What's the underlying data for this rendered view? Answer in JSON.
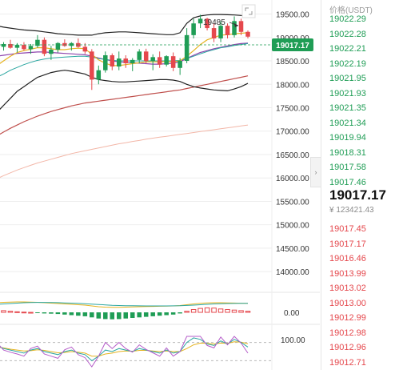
{
  "chart": {
    "high_marker": "19485",
    "price_tag": "19017.17",
    "price_axis": [
      "19500.00",
      "19000.00",
      "18500.00",
      "18000.00",
      "17500.00",
      "17000.00",
      "16500.00",
      "16000.00",
      "15500.00",
      "15000.00",
      "14500.00",
      "14000.00"
    ],
    "macd_axis": "0.00",
    "kdj_axis": "100.00",
    "colors": {
      "up": "#1f9d55",
      "down": "#e5484d",
      "tag_bg": "#1f9d55",
      "grid": "#eeeeee"
    },
    "icons": {
      "expand": "expand-icon",
      "collapse": "chevron-right-icon"
    }
  },
  "orderbook": {
    "header": "价格(USDT)",
    "top_asks": [
      "19022.29",
      "19022.28",
      "19022.21",
      "19022.19",
      "19021.95",
      "19021.93",
      "19021.35",
      "19021.34",
      "19019.94",
      "19018.31",
      "19017.58",
      "19017.46"
    ],
    "last_price": "19017.17",
    "last_sub": "¥ 123421.43",
    "bottom_rows": [
      "19017.45",
      "19017.17",
      "19016.46",
      "19013.99",
      "19013.02",
      "19013.00",
      "19012.99",
      "19012.98",
      "19012.96",
      "19012.71"
    ]
  },
  "chart_data": {
    "type": "candlestick",
    "title": "",
    "price_range": [
      13900,
      19800
    ],
    "candles": [
      {
        "o": 18700,
        "h": 18880,
        "l": 18600,
        "c": 18800
      },
      {
        "o": 18800,
        "h": 18900,
        "l": 18720,
        "c": 18860
      },
      {
        "o": 18860,
        "h": 18950,
        "l": 18760,
        "c": 18780
      },
      {
        "o": 18780,
        "h": 18880,
        "l": 18680,
        "c": 18840
      },
      {
        "o": 18840,
        "h": 18900,
        "l": 18720,
        "c": 18750
      },
      {
        "o": 18750,
        "h": 18860,
        "l": 18650,
        "c": 18820
      },
      {
        "o": 18820,
        "h": 19050,
        "l": 18780,
        "c": 18950
      },
      {
        "o": 18950,
        "h": 19000,
        "l": 18600,
        "c": 18650
      },
      {
        "o": 18650,
        "h": 18820,
        "l": 18520,
        "c": 18740
      },
      {
        "o": 18740,
        "h": 18900,
        "l": 18680,
        "c": 18880
      },
      {
        "o": 18880,
        "h": 18960,
        "l": 18800,
        "c": 18820
      },
      {
        "o": 18820,
        "h": 18900,
        "l": 18720,
        "c": 18880
      },
      {
        "o": 18880,
        "h": 18980,
        "l": 18780,
        "c": 18800
      },
      {
        "o": 18800,
        "h": 18880,
        "l": 18650,
        "c": 18700
      },
      {
        "o": 18700,
        "h": 18750,
        "l": 17880,
        "c": 18100
      },
      {
        "o": 18100,
        "h": 18400,
        "l": 18000,
        "c": 18300
      },
      {
        "o": 18300,
        "h": 18700,
        "l": 18250,
        "c": 18620
      },
      {
        "o": 18620,
        "h": 18660,
        "l": 18300,
        "c": 18380
      },
      {
        "o": 18380,
        "h": 18700,
        "l": 18300,
        "c": 18550
      },
      {
        "o": 18550,
        "h": 18620,
        "l": 18350,
        "c": 18450
      },
      {
        "o": 18450,
        "h": 18560,
        "l": 18280,
        "c": 18520
      },
      {
        "o": 18520,
        "h": 18750,
        "l": 18450,
        "c": 18700
      },
      {
        "o": 18700,
        "h": 18760,
        "l": 18450,
        "c": 18500
      },
      {
        "o": 18500,
        "h": 18640,
        "l": 18300,
        "c": 18580
      },
      {
        "o": 18580,
        "h": 18700,
        "l": 18350,
        "c": 18420
      },
      {
        "o": 18420,
        "h": 18620,
        "l": 18380,
        "c": 18600
      },
      {
        "o": 18600,
        "h": 18680,
        "l": 18280,
        "c": 18350
      },
      {
        "o": 18350,
        "h": 18560,
        "l": 18200,
        "c": 18500
      },
      {
        "o": 18500,
        "h": 19200,
        "l": 18450,
        "c": 19050
      },
      {
        "o": 19050,
        "h": 19400,
        "l": 18980,
        "c": 19300
      },
      {
        "o": 19300,
        "h": 19485,
        "l": 19200,
        "c": 19400
      },
      {
        "o": 19400,
        "h": 19420,
        "l": 19150,
        "c": 19200
      },
      {
        "o": 19200,
        "h": 19300,
        "l": 18900,
        "c": 18980
      },
      {
        "o": 18980,
        "h": 19350,
        "l": 18900,
        "c": 19250
      },
      {
        "o": 19250,
        "h": 19300,
        "l": 18980,
        "c": 19050
      },
      {
        "o": 19050,
        "h": 19450,
        "l": 19000,
        "c": 19350
      },
      {
        "o": 19350,
        "h": 19400,
        "l": 19050,
        "c": 19120
      },
      {
        "o": 19120,
        "h": 19150,
        "l": 18980,
        "c": 19017
      }
    ],
    "bands_upper": [
      19250,
      19220,
      19200,
      19180,
      19160,
      19150,
      19140,
      19120,
      19100,
      19080,
      19070,
      19060,
      19050,
      19050,
      19050,
      19080,
      19100,
      19110,
      19120,
      19120,
      19110,
      19100,
      19090,
      19080,
      19070,
      19060,
      19060,
      19100,
      19300,
      19420,
      19460,
      19480,
      19490,
      19490,
      19485,
      19480,
      19470,
      19460
    ],
    "bands_middle": [
      18600,
      18620,
      18640,
      18660,
      18670,
      18680,
      18690,
      18690,
      18680,
      18670,
      18660,
      18650,
      18640,
      18630,
      18600,
      18560,
      18530,
      18500,
      18480,
      18470,
      18460,
      18450,
      18440,
      18430,
      18430,
      18440,
      18450,
      18480,
      18550,
      18620,
      18680,
      18720,
      18760,
      18790,
      18820,
      18850,
      18870,
      18880
    ],
    "bands_lower": [
      17400,
      17550,
      17700,
      17850,
      17950,
      18050,
      18150,
      18200,
      18250,
      18280,
      18300,
      18280,
      18250,
      18220,
      18150,
      18100,
      18080,
      18060,
      18050,
      18050,
      18060,
      18070,
      18080,
      18090,
      18100,
      18100,
      18090,
      18060,
      18000,
      17950,
      17920,
      17900,
      17880,
      17870,
      17860,
      17900,
      17950,
      18020
    ],
    "ma_short": [
      18400,
      18500,
      18600,
      18680,
      18720,
      18750,
      18780,
      18780,
      18760,
      18740,
      18740,
      18760,
      18770,
      18760,
      18640,
      18520,
      18450,
      18400,
      18400,
      18420,
      18440,
      18460,
      18480,
      18480,
      18480,
      18490,
      18480,
      18500,
      18600,
      18720,
      18850,
      18950,
      19000,
      19050,
      19060,
      19080,
      19090,
      19100
    ],
    "ma_mid": [
      18150,
      18220,
      18300,
      18360,
      18420,
      18470,
      18510,
      18540,
      18560,
      18570,
      18580,
      18590,
      18600,
      18600,
      18580,
      18550,
      18530,
      18510,
      18500,
      18500,
      18500,
      18500,
      18500,
      18500,
      18500,
      18500,
      18500,
      18510,
      18550,
      18600,
      18650,
      18700,
      18740,
      18780,
      18800,
      18830,
      18850,
      18870
    ],
    "ma_long": [
      16900,
      16980,
      17060,
      17130,
      17200,
      17260,
      17320,
      17370,
      17420,
      17460,
      17500,
      17540,
      17570,
      17600,
      17620,
      17640,
      17660,
      17680,
      17700,
      17720,
      17740,
      17760,
      17780,
      17800,
      17820,
      17840,
      17860,
      17880,
      17910,
      17940,
      17970,
      18000,
      18030,
      18060,
      18090,
      18120,
      18150,
      18180
    ],
    "ma_xlong": [
      15980,
      16050,
      16110,
      16170,
      16220,
      16270,
      16320,
      16360,
      16400,
      16440,
      16480,
      16520,
      16550,
      16580,
      16610,
      16640,
      16670,
      16700,
      16730,
      16750,
      16780,
      16800,
      16830,
      16850,
      16870,
      16890,
      16910,
      16930,
      16950,
      16970,
      16990,
      17010,
      17030,
      17050,
      17070,
      17090,
      17110,
      17130
    ],
    "macd": [
      0.1,
      0.15,
      0.1,
      0.05,
      0.02,
      0.0,
      -0.05,
      -0.1,
      -0.12,
      -0.15,
      -0.2,
      -0.25,
      -0.3,
      -0.35,
      -0.45,
      -0.55,
      -0.6,
      -0.62,
      -0.6,
      -0.55,
      -0.5,
      -0.45,
      -0.4,
      -0.35,
      -0.3,
      -0.25,
      -0.2,
      -0.1,
      0.1,
      0.25,
      0.35,
      0.4,
      0.38,
      0.3,
      0.25,
      0.2,
      0.15,
      0.1
    ],
    "macd_dif": [
      1.2,
      1.25,
      1.28,
      1.3,
      1.3,
      1.28,
      1.25,
      1.2,
      1.15,
      1.1,
      1.05,
      1.0,
      0.95,
      0.9,
      0.8,
      0.7,
      0.65,
      0.62,
      0.62,
      0.65,
      0.68,
      0.7,
      0.72,
      0.74,
      0.76,
      0.78,
      0.8,
      0.85,
      0.95,
      1.05,
      1.12,
      1.18,
      1.2,
      1.2,
      1.18,
      1.16,
      1.14,
      1.12
    ],
    "macd_dea": [
      1.0,
      1.05,
      1.1,
      1.15,
      1.2,
      1.22,
      1.24,
      1.24,
      1.23,
      1.21,
      1.18,
      1.15,
      1.12,
      1.08,
      1.03,
      0.98,
      0.93,
      0.88,
      0.85,
      0.83,
      0.82,
      0.81,
      0.8,
      0.8,
      0.8,
      0.8,
      0.81,
      0.82,
      0.86,
      0.9,
      0.95,
      1.0,
      1.05,
      1.08,
      1.1,
      1.11,
      1.12,
      1.12
    ],
    "kdj_k": [
      70,
      60,
      55,
      50,
      45,
      55,
      60,
      50,
      45,
      40,
      50,
      55,
      45,
      40,
      20,
      35,
      55,
      50,
      60,
      55,
      50,
      60,
      55,
      50,
      45,
      55,
      45,
      50,
      80,
      95,
      90,
      75,
      70,
      85,
      75,
      90,
      80,
      65
    ],
    "kdj_d": [
      65,
      62,
      58,
      55,
      52,
      53,
      56,
      54,
      50,
      46,
      47,
      50,
      48,
      45,
      35,
      35,
      42,
      45,
      50,
      52,
      51,
      54,
      54,
      52,
      50,
      52,
      50,
      50,
      60,
      72,
      78,
      77,
      75,
      78,
      77,
      82,
      81,
      76
    ],
    "kdj_j": [
      80,
      55,
      48,
      42,
      35,
      60,
      68,
      42,
      35,
      28,
      56,
      65,
      40,
      30,
      0,
      35,
      80,
      60,
      80,
      60,
      48,
      72,
      57,
      46,
      35,
      62,
      35,
      50,
      100,
      100,
      100,
      70,
      62,
      98,
      72,
      100,
      78,
      45
    ]
  }
}
